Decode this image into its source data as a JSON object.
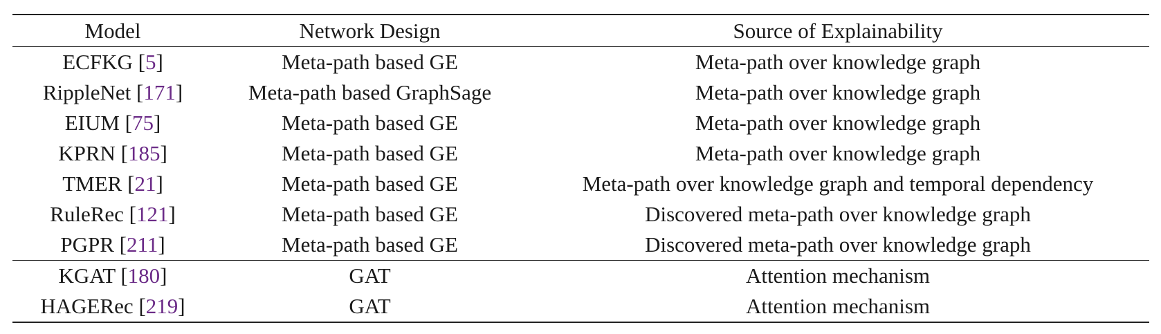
{
  "table": {
    "headers": [
      "Model",
      "Network Design",
      "Source of Explainability"
    ],
    "groups": [
      [
        {
          "model": "ECFKG",
          "ref": "5",
          "network": "Meta-path based GE",
          "source": "Meta-path over knowledge graph"
        },
        {
          "model": "RippleNet",
          "ref": "171",
          "network": "Meta-path based GraphSage",
          "source": "Meta-path over knowledge graph"
        },
        {
          "model": "EIUM",
          "ref": "75",
          "network": "Meta-path based GE",
          "source": "Meta-path over knowledge graph"
        },
        {
          "model": "KPRN",
          "ref": "185",
          "network": "Meta-path based GE",
          "source": "Meta-path over knowledge graph"
        },
        {
          "model": "TMER",
          "ref": "21",
          "network": "Meta-path based GE",
          "source": "Meta-path over knowledge graph and temporal dependency"
        },
        {
          "model": "RuleRec",
          "ref": "121",
          "network": "Meta-path based GE",
          "source": "Discovered meta-path over knowledge graph"
        },
        {
          "model": "PGPR",
          "ref": "211",
          "network": "Meta-path based GE",
          "source": "Discovered meta-path over knowledge graph"
        }
      ],
      [
        {
          "model": "KGAT",
          "ref": "180",
          "network": "GAT",
          "source": "Attention mechanism"
        },
        {
          "model": "HAGERec",
          "ref": "219",
          "network": "GAT",
          "source": "Attention mechanism"
        }
      ]
    ]
  },
  "colors": {
    "citation": "#6b2b87",
    "text": "#1a1a1a",
    "rule": "#222222"
  }
}
